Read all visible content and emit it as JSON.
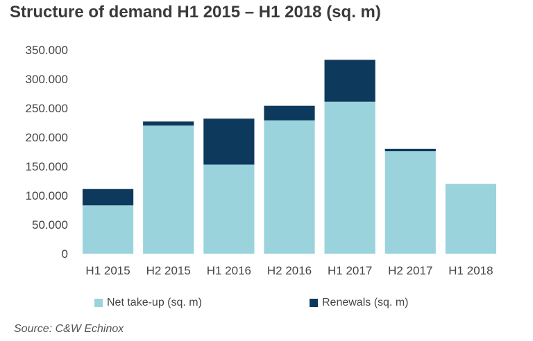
{
  "title": "Structure of demand H1 2015 – H1 2018 (sq. m)",
  "source": "Source: C&W Echinox",
  "colors": {
    "net": "#9bd3dd",
    "renewals": "#0d3a5c"
  },
  "chart_data": {
    "type": "bar",
    "stacked": true,
    "title": "Structure of demand H1 2015 – H1 2018 (sq. m)",
    "xlabel": "",
    "ylabel": "",
    "ylim": [
      0,
      350000
    ],
    "yticks": [
      0,
      50000,
      100000,
      150000,
      200000,
      250000,
      300000,
      350000
    ],
    "ytick_labels": [
      "0",
      "50.000",
      "100.000",
      "150.000",
      "200.000",
      "250.000",
      "300.000",
      "350.000"
    ],
    "grid": false,
    "legend": "bottom",
    "categories": [
      "H1 2015",
      "H2 2015",
      "H1 2016",
      "H2 2016",
      "H1 2017",
      "H2 2017",
      "H1 2018"
    ],
    "series": [
      {
        "name": "Net take-up (sq. m)",
        "values": [
          83000,
          220000,
          153000,
          229000,
          261000,
          176000,
          120000
        ]
      },
      {
        "name": "Renewals (sq. m)",
        "values": [
          28000,
          7000,
          79000,
          25000,
          72000,
          4000,
          0
        ]
      }
    ]
  }
}
